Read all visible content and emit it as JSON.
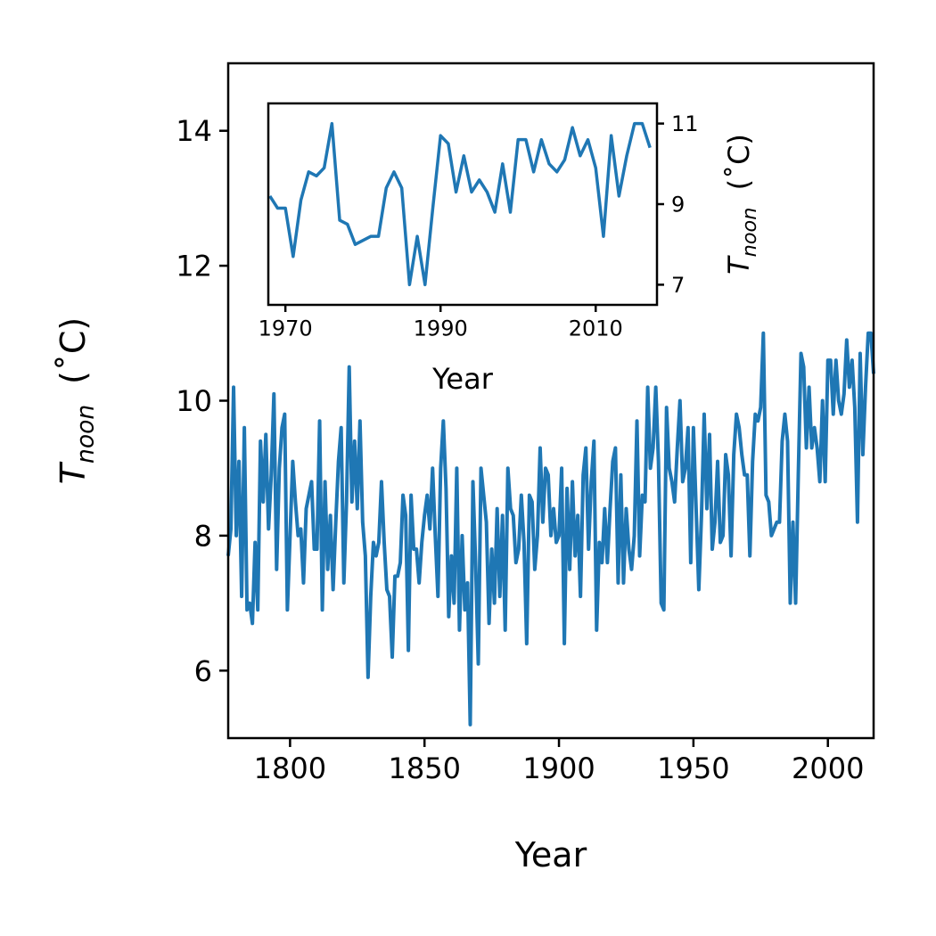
{
  "chart_data": [
    {
      "type": "line",
      "xlabel": "Year",
      "ylabel": {
        "symbol": "T",
        "subscript": "noon",
        "unit": "(˚C)"
      },
      "x": [
        1777,
        1778,
        1779,
        1780,
        1781,
        1782,
        1783,
        1784,
        1785,
        1786,
        1787,
        1788,
        1789,
        1790,
        1791,
        1792,
        1793,
        1794,
        1795,
        1796,
        1797,
        1798,
        1799,
        1800,
        1801,
        1802,
        1803,
        1804,
        1805,
        1806,
        1807,
        1808,
        1809,
        1810,
        1811,
        1812,
        1813,
        1814,
        1815,
        1816,
        1817,
        1818,
        1819,
        1820,
        1821,
        1822,
        1823,
        1824,
        1825,
        1826,
        1827,
        1828,
        1829,
        1830,
        1831,
        1832,
        1833,
        1834,
        1835,
        1836,
        1837,
        1838,
        1839,
        1840,
        1841,
        1842,
        1843,
        1844,
        1845,
        1846,
        1847,
        1848,
        1849,
        1850,
        1851,
        1852,
        1853,
        1854,
        1855,
        1856,
        1857,
        1858,
        1859,
        1860,
        1861,
        1862,
        1863,
        1864,
        1865,
        1866,
        1867,
        1868,
        1869,
        1870,
        1871,
        1872,
        1873,
        1874,
        1875,
        1876,
        1877,
        1878,
        1879,
        1880,
        1881,
        1882,
        1883,
        1884,
        1885,
        1886,
        1887,
        1888,
        1889,
        1890,
        1891,
        1892,
        1893,
        1894,
        1895,
        1896,
        1897,
        1898,
        1899,
        1900,
        1901,
        1902,
        1903,
        1904,
        1905,
        1906,
        1907,
        1908,
        1909,
        1910,
        1911,
        1912,
        1913,
        1914,
        1915,
        1916,
        1917,
        1918,
        1919,
        1920,
        1921,
        1922,
        1923,
        1924,
        1925,
        1926,
        1927,
        1928,
        1929,
        1930,
        1931,
        1932,
        1933,
        1934,
        1935,
        1936,
        1937,
        1938,
        1939,
        1940,
        1941,
        1942,
        1943,
        1944,
        1945,
        1946,
        1947,
        1948,
        1949,
        1950,
        1951,
        1952,
        1953,
        1954,
        1955,
        1956,
        1957,
        1958,
        1959,
        1960,
        1961,
        1962,
        1963,
        1964,
        1965,
        1966,
        1967,
        1968,
        1969,
        1970,
        1971,
        1972,
        1973,
        1974,
        1975,
        1976,
        1977,
        1978,
        1979,
        1980,
        1981,
        1982,
        1983,
        1984,
        1985,
        1986,
        1987,
        1988,
        1989,
        1990,
        1991,
        1992,
        1993,
        1994,
        1995,
        1996,
        1997,
        1998,
        1999,
        2000,
        2001,
        2002,
        2003,
        2004,
        2005,
        2006,
        2007,
        2008,
        2009,
        2010,
        2011,
        2012,
        2013,
        2014,
        2015,
        2016,
        2017
      ],
      "series": [
        {
          "color": "#1f77b4",
          "values": [
            7.7,
            8.1,
            10.2,
            8.0,
            9.1,
            7.1,
            9.6,
            6.9,
            7.0,
            6.7,
            7.9,
            6.9,
            9.4,
            8.5,
            9.5,
            8.1,
            8.9,
            10.1,
            7.5,
            9.0,
            9.6,
            9.8,
            6.9,
            8.0,
            9.1,
            8.5,
            8.0,
            8.1,
            7.3,
            8.4,
            8.6,
            8.8,
            7.8,
            7.8,
            9.7,
            6.9,
            8.8,
            7.5,
            8.3,
            7.2,
            8.2,
            9.1,
            9.6,
            7.3,
            8.5,
            10.5,
            8.5,
            9.4,
            8.4,
            9.7,
            8.2,
            7.7,
            5.9,
            7.1,
            7.9,
            7.7,
            7.9,
            8.8,
            7.9,
            7.2,
            7.1,
            6.2,
            7.4,
            7.4,
            7.6,
            8.6,
            8.3,
            6.3,
            8.6,
            7.8,
            7.8,
            7.3,
            7.9,
            8.3,
            8.6,
            8.1,
            9.0,
            8.0,
            7.1,
            9.0,
            9.7,
            8.7,
            6.8,
            7.7,
            7.0,
            9.0,
            6.6,
            8.0,
            6.9,
            7.3,
            5.2,
            8.8,
            7.6,
            6.1,
            9.0,
            8.6,
            8.2,
            6.7,
            7.8,
            7.0,
            8.4,
            7.1,
            8.3,
            6.6,
            9.0,
            8.4,
            8.3,
            7.6,
            7.8,
            8.6,
            7.9,
            6.4,
            8.6,
            8.5,
            7.5,
            8.0,
            9.3,
            8.2,
            9.0,
            8.9,
            8.0,
            8.4,
            7.9,
            8.0,
            9.0,
            6.4,
            8.7,
            7.5,
            8.8,
            7.7,
            8.3,
            7.1,
            8.9,
            9.3,
            7.8,
            8.8,
            9.4,
            6.6,
            7.9,
            7.6,
            8.4,
            7.6,
            8.4,
            9.1,
            9.3,
            7.3,
            8.9,
            7.3,
            8.4,
            7.8,
            7.5,
            8.0,
            9.7,
            7.7,
            8.6,
            8.5,
            10.2,
            9.0,
            9.3,
            10.2,
            9.1,
            7.0,
            6.9,
            9.9,
            9.0,
            8.8,
            8.5,
            9.3,
            10.0,
            8.8,
            9.0,
            9.6,
            7.6,
            9.6,
            8.4,
            7.2,
            8.3,
            9.8,
            8.4,
            9.5,
            7.8,
            8.2,
            9.1,
            7.9,
            8.0,
            9.2,
            8.9,
            7.7,
            9.2,
            9.8,
            9.6,
            9.2,
            8.9,
            8.9,
            7.7,
            9.1,
            9.8,
            9.7,
            9.9,
            11.0,
            8.6,
            8.5,
            8.0,
            8.1,
            8.2,
            8.2,
            9.4,
            9.8,
            9.4,
            7.0,
            8.2,
            7.0,
            8.9,
            10.7,
            10.5,
            9.3,
            10.2,
            9.3,
            9.6,
            9.3,
            8.8,
            10.0,
            8.8,
            10.6,
            10.6,
            9.8,
            10.6,
            10.0,
            9.8,
            10.1,
            10.9,
            10.2,
            10.6,
            9.9,
            8.2,
            10.7,
            9.2,
            10.2,
            11.0,
            11.0,
            10.4
          ]
        }
      ],
      "xlim": [
        1777,
        2017
      ],
      "xticks": [
        1800,
        1850,
        1900,
        1950,
        2000
      ],
      "ylim": [
        5,
        15
      ],
      "yticks": [
        6,
        8,
        10,
        12,
        14
      ],
      "yaxis_side": "left"
    },
    {
      "type": "line",
      "xlabel": "Year",
      "ylabel": {
        "symbol": "T",
        "subscript": "noon",
        "unit": "(˚C)"
      },
      "x": [
        1968,
        1969,
        1970,
        1971,
        1972,
        1973,
        1974,
        1975,
        1976,
        1977,
        1978,
        1979,
        1980,
        1981,
        1982,
        1983,
        1984,
        1985,
        1986,
        1987,
        1988,
        1989,
        1990,
        1991,
        1992,
        1993,
        1994,
        1995,
        1996,
        1997,
        1998,
        1999,
        2000,
        2001,
        2002,
        2003,
        2004,
        2005,
        2006,
        2007,
        2008,
        2009,
        2010,
        2011,
        2012,
        2013,
        2014,
        2015,
        2016,
        2017
      ],
      "series": [
        {
          "color": "#1f77b4",
          "values": [
            9.2,
            8.9,
            8.9,
            7.7,
            9.1,
            9.8,
            9.7,
            9.9,
            11.0,
            8.6,
            8.5,
            8.0,
            8.1,
            8.2,
            8.2,
            9.4,
            9.8,
            9.4,
            7.0,
            8.2,
            7.0,
            8.9,
            10.7,
            10.5,
            9.3,
            10.2,
            9.3,
            9.6,
            9.3,
            8.8,
            10.0,
            8.8,
            10.6,
            10.6,
            9.8,
            10.6,
            10.0,
            9.8,
            10.1,
            10.9,
            10.2,
            10.6,
            9.9,
            8.2,
            10.7,
            9.2,
            10.2,
            11.0,
            11.0,
            10.4
          ]
        }
      ],
      "xlim": [
        1967.8,
        2017.9
      ],
      "xticks": [
        1970,
        1990,
        2010
      ],
      "ylim": [
        6.5,
        11.5
      ],
      "yticks": [
        7,
        9,
        11
      ],
      "yaxis_side": "right"
    }
  ]
}
